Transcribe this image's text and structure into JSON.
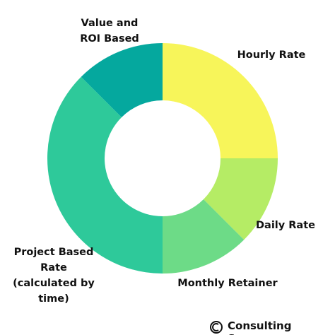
{
  "chart_data": {
    "type": "pie",
    "categories": [
      "Hourly Rate",
      "Daily Rate",
      "Monthly Retainer",
      "Project Based Rate (calculated by time)",
      "Value and ROI Based"
    ],
    "values": [
      25,
      12.5,
      12.5,
      37.5,
      12.5
    ],
    "colors": [
      "#f7f55a",
      "#b5ec65",
      "#6ddb87",
      "#2ec99a",
      "#05a89e"
    ]
  },
  "footer": "Consulting Success"
}
